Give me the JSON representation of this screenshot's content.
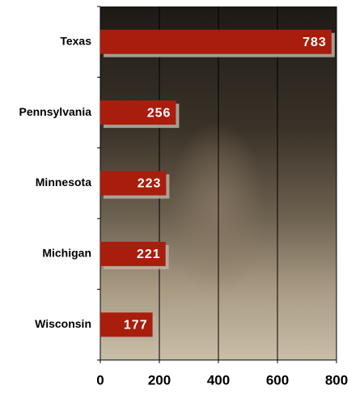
{
  "chart_data": {
    "type": "bar",
    "orientation": "horizontal",
    "categories": [
      "Texas",
      "Pennsylvania",
      "Minnesota",
      "Michigan",
      "Wisconsin"
    ],
    "values": [
      783,
      256,
      223,
      221,
      177
    ],
    "color": "#a91d0d",
    "xlim": [
      0,
      800
    ],
    "xticks": [
      0,
      200,
      400,
      600,
      800
    ],
    "grid": true
  }
}
